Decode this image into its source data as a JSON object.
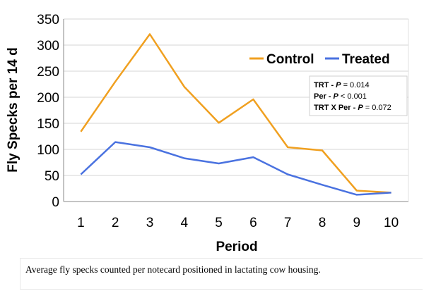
{
  "chart_data": {
    "type": "line",
    "title": "",
    "xlabel": "Period",
    "ylabel": "Fly Specks per 14 d",
    "x": [
      "1",
      "2",
      "3",
      "4",
      "5",
      "6",
      "7",
      "8",
      "9",
      "10"
    ],
    "ylim": [
      0,
      350
    ],
    "yticks": [
      "0",
      "50",
      "100",
      "150",
      "200",
      "250",
      "300",
      "350"
    ],
    "grid": true,
    "legend_position": "top-right",
    "series": [
      {
        "name": "Control",
        "color": "#f0a020",
        "values": [
          134,
          230,
          321,
          220,
          151,
          196,
          104,
          98,
          21,
          17
        ]
      },
      {
        "name": "Treated",
        "color": "#4a72e0",
        "values": [
          52,
          114,
          104,
          83,
          73,
          85,
          52,
          32,
          13,
          17
        ]
      }
    ],
    "annotations": [
      {
        "label": "TRT - ",
        "p": "P",
        "value": " = 0.014"
      },
      {
        "label": "Per - ",
        "p": "P",
        "value": " < 0.001"
      },
      {
        "label": "TRT X Per - ",
        "p": "P",
        "value": " = 0.072"
      }
    ]
  },
  "caption": "Average fly specks counted per notecard positioned in lactating cow housing."
}
